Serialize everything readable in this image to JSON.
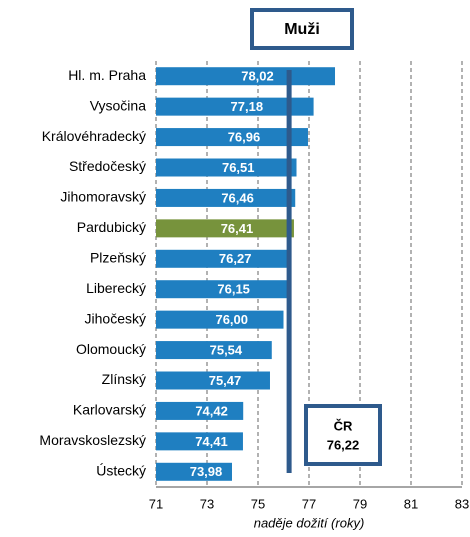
{
  "chart_data": {
    "type": "bar",
    "orientation": "horizontal",
    "title": "Muži",
    "categories": [
      "Hl. m. Praha",
      "Vysočina",
      "Královéhradecký",
      "Středočeský",
      "Jihomoravský",
      "Pardubický",
      "Plzeňský",
      "Liberecký",
      "Jihočeský",
      "Olomoucký",
      "Zlínský",
      "Karlovarský",
      "Moravskoslezský",
      "Ústecký"
    ],
    "values": [
      78.02,
      77.18,
      76.96,
      76.51,
      76.46,
      76.41,
      76.27,
      76.15,
      76.0,
      75.54,
      75.47,
      74.42,
      74.41,
      73.98
    ],
    "value_labels": [
      "78,02",
      "77,18",
      "76,96",
      "76,51",
      "76,46",
      "76,41",
      "76,27",
      "76,15",
      "76,00",
      "75,54",
      "75,47",
      "74,42",
      "74,41",
      "73,98"
    ],
    "colors": [
      "#1f7fc1",
      "#1f7fc1",
      "#1f7fc1",
      "#1f7fc1",
      "#1f7fc1",
      "#77933c",
      "#1f7fc1",
      "#1f7fc1",
      "#1f7fc1",
      "#1f7fc1",
      "#1f7fc1",
      "#1f7fc1",
      "#1f7fc1",
      "#1f7fc1"
    ],
    "xlim": [
      71,
      83
    ],
    "xticks": [
      71,
      73,
      75,
      77,
      79,
      81,
      83
    ],
    "grid": true,
    "xlabel": "naděje dožití (roky)",
    "reference": {
      "label": "ČR",
      "value": 76.22,
      "value_label": "76,22",
      "color": "#2e5a8c"
    }
  }
}
